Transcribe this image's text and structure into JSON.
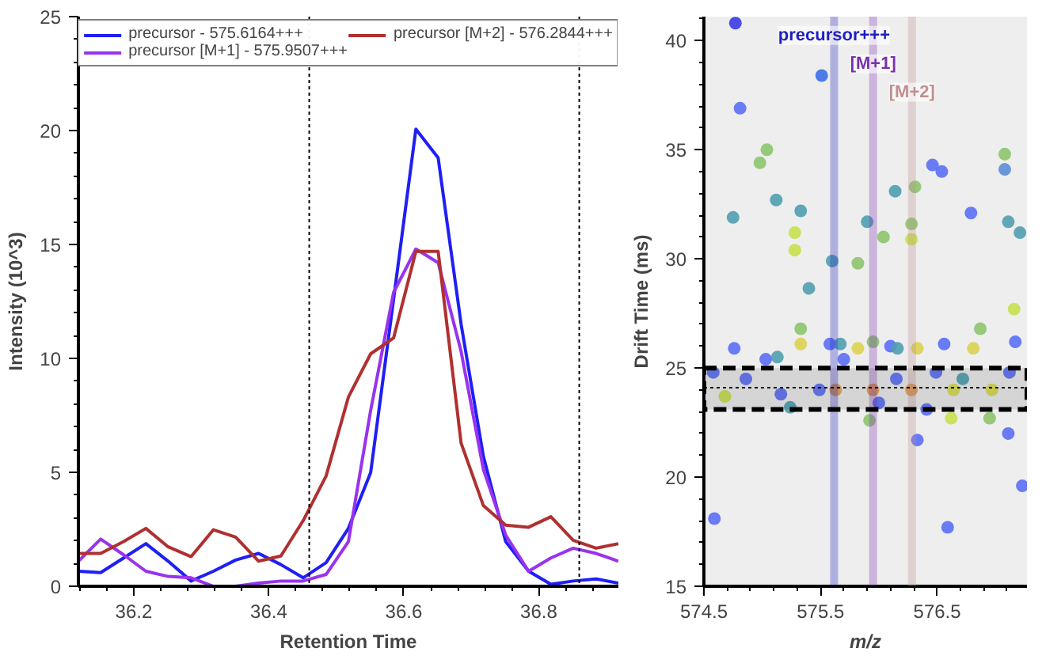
{
  "chart_data": [
    {
      "type": "line",
      "xlabel": "Retention Time",
      "ylabel": "Intensity (10^3)",
      "x": [
        36.118,
        36.151,
        36.185,
        36.218,
        36.251,
        36.285,
        36.318,
        36.351,
        36.385,
        36.418,
        36.451,
        36.485,
        36.518,
        36.551,
        36.585,
        36.618,
        36.651,
        36.685,
        36.718,
        36.751,
        36.785,
        36.818,
        36.851,
        36.885,
        36.918
      ],
      "series": [
        {
          "name": "precursor - 575.6164+++",
          "color": "#1f1ff5",
          "values": [
            0.66,
            0.6,
            1.24,
            1.87,
            1.1,
            0.23,
            0.66,
            1.15,
            1.44,
            0.95,
            0.37,
            1.04,
            2.54,
            4.99,
            12.6,
            20.06,
            18.8,
            11.5,
            5.7,
            1.96,
            0.66,
            0.09,
            0.23,
            0.32,
            0.14
          ]
        },
        {
          "name": "precursor [M+1] - 575.9507+++",
          "color": "#9933ee",
          "values": [
            1.1,
            2.07,
            1.38,
            0.66,
            0.43,
            0.37,
            0,
            0,
            0.14,
            0.23,
            0.23,
            0.52,
            1.96,
            7.72,
            12.9,
            14.8,
            14.2,
            10.3,
            5.13,
            2.25,
            0.66,
            1.24,
            1.67,
            1.44,
            1.1
          ]
        },
        {
          "name": "precursor [M+2] - 576.2844+++",
          "color": "#b03030",
          "values": [
            1.44,
            1.44,
            1.96,
            2.54,
            1.73,
            1.3,
            2.48,
            2.16,
            1.1,
            1.33,
            2.88,
            4.84,
            8.3,
            10.2,
            10.9,
            14.7,
            14.7,
            6.28,
            3.54,
            2.68,
            2.59,
            3.05,
            2.02,
            1.67,
            1.87
          ]
        }
      ],
      "ref_lines": [
        {
          "axis": "x",
          "value": 36.46,
          "color": "#000000",
          "line_style": "dotted"
        },
        {
          "axis": "x",
          "value": 36.86,
          "color": "#000000",
          "line_style": "dotted"
        }
      ],
      "xlim": [
        36.118,
        36.918
      ],
      "xticks": [
        36.2,
        36.4,
        36.6,
        36.8
      ],
      "ylim": [
        0,
        25
      ],
      "yticks": [
        0,
        5,
        10,
        15,
        20,
        25
      ],
      "legend": "top",
      "grid": false
    },
    {
      "type": "scatter",
      "xlabel": "m/z",
      "ylabel": "Drift Time (ms)",
      "x": [
        574.77,
        575.51,
        574.81,
        574.75,
        574.98,
        575.04,
        575.12,
        575.28,
        575.28,
        575.33,
        575.4,
        575.6,
        576.14,
        575.82,
        575.9,
        576.04,
        576.31,
        576.28,
        576.28,
        576.46,
        576.54,
        576.79,
        577.08,
        577.08,
        577.11,
        577.16,
        577.21,
        574.59,
        576.59,
        576.33,
        577.11,
        577.23,
        575.33,
        576.87,
        574.58,
        574.86,
        574.76,
        575.03,
        575.16,
        575.58,
        575.7,
        576.1,
        576.15,
        576.56,
        576.49,
        577.12,
        577.17,
        576.41,
        576.0,
        575.49,
        575.67,
        575.13,
        576.72,
        576.16,
        575.95,
        575.24,
        575.92,
        576.95,
        576.62,
        574.68,
        575.33,
        575.82,
        576.33,
        576.81,
        576.64,
        576.97,
        575.63,
        575.95,
        576.28
      ],
      "values": [
        40.8,
        38.4,
        36.9,
        31.9,
        34.4,
        35.0,
        32.7,
        31.2,
        30.4,
        32.2,
        28.65,
        29.9,
        33.1,
        29.8,
        31.7,
        31.0,
        33.3,
        31.6,
        30.9,
        34.3,
        34.0,
        32.1,
        34.8,
        34.1,
        31.7,
        27.7,
        31.2,
        18.1,
        17.7,
        21.7,
        22.0,
        19.6,
        26.8,
        26.8,
        24.8,
        24.5,
        25.9,
        25.4,
        23.8,
        26.1,
        25.4,
        26.0,
        24.5,
        26.1,
        24.8,
        24.8,
        26.2,
        23.1,
        23.4,
        24.0,
        26.1,
        25.5,
        24.5,
        25.9,
        26.2,
        23.2,
        22.6,
        22.7,
        22.7,
        23.7,
        26.1,
        25.9,
        25.9,
        25.9,
        24.0,
        24.0,
        24.0,
        24.0,
        24.0
      ],
      "colors": [
        "#3a3ae8",
        "#3a6ee8",
        "#5a6ef5",
        "#4f9fb0",
        "#8cc46c",
        "#8cc46c",
        "#4f9fb0",
        "#c5e04c",
        "#c5e04c",
        "#4f9fb0",
        "#4f9fb0",
        "#4f9fb0",
        "#4f9fb0",
        "#8cc46c",
        "#4f9fb0",
        "#8cc46c",
        "#8cc46c",
        "#8cc46c",
        "#c5e04c",
        "#5a6ef5",
        "#5a6ef5",
        "#5a6ef5",
        "#8cc46c",
        "#5a8ed5",
        "#4f9fb0",
        "#c5e04c",
        "#4f9fb0",
        "#5a6ef5",
        "#5a6ef5",
        "#5a6ef5",
        "#5a6ef5",
        "#5a6ef5",
        "#8cc46c",
        "#8cc46c",
        "#5a6ef5",
        "#5a6ef5",
        "#5a6ef5",
        "#5a6ef5",
        "#5a6ef5",
        "#5a6ef5",
        "#5a6ef5",
        "#5a6ef5",
        "#5a6ef5",
        "#5a6ef5",
        "#5a6ef5",
        "#5a6ef5",
        "#5a6ef5",
        "#5a6ef5",
        "#5a6ef5",
        "#5a6ef5",
        "#4f9fb0",
        "#4f9fb0",
        "#4f9fb0",
        "#4f9fb0",
        "#8cc46c",
        "#4f9fb0",
        "#8cc46c",
        "#8cc46c",
        "#c5e04c",
        "#c5e04c",
        "#dcd050",
        "#dcd050",
        "#dcd050",
        "#dcd050",
        "#d8dc4c",
        "#d8dc4c",
        "#e8a052",
        "#e8a052",
        "#e8a052"
      ],
      "ref_lines": [
        {
          "axis": "x",
          "value": 575.6164,
          "label": "precursor+++",
          "color": "#2020c0"
        },
        {
          "axis": "x",
          "value": 575.9507,
          "label": "[M+1]",
          "color": "#7a30b0"
        },
        {
          "axis": "x",
          "value": 576.2844,
          "label": "[M+2]",
          "color": "#c09090"
        },
        {
          "axis": "y",
          "value": 24.1,
          "color": "#000000",
          "line_style": "dotted"
        }
      ],
      "bands": [
        {
          "axis": "y",
          "from": 23.1,
          "to": 25.0,
          "color": "#000000"
        }
      ],
      "xlim": [
        574.5,
        577.27
      ],
      "xticks": [
        574.5,
        575.5,
        576.5
      ],
      "ylim": [
        15,
        41.1
      ],
      "yticks": [
        15,
        20,
        25,
        30,
        35,
        40
      ],
      "grid": false
    }
  ]
}
